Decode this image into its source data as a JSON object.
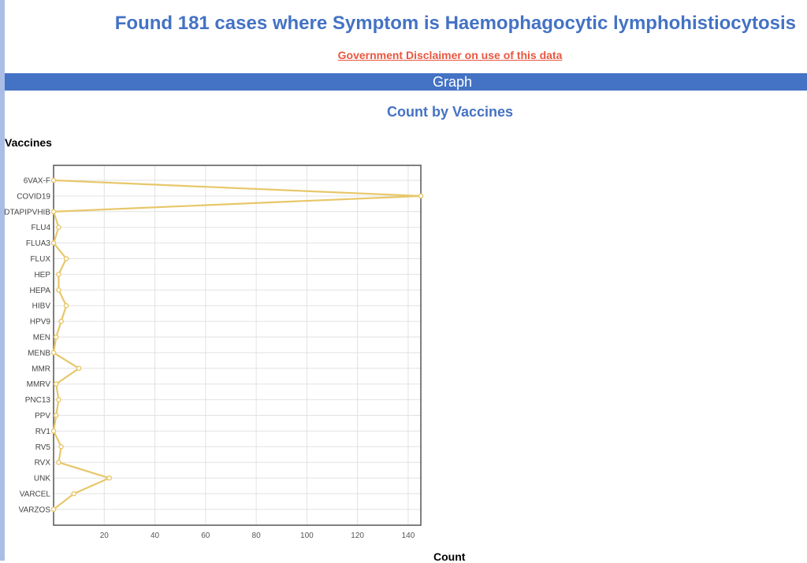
{
  "page": {
    "title": "Found 181 cases where Symptom is Haemophagocytic lymphohistiocytosis",
    "disclaimer_link": "Government Disclaimer on use of this data",
    "section_header": "Graph"
  },
  "chart_data": {
    "type": "line",
    "orientation": "horizontal",
    "title": "Count by Vaccines",
    "ylabel": "Vaccines",
    "xlabel": "Count",
    "xlim": [
      0,
      145
    ],
    "x_ticks": [
      20,
      40,
      60,
      80,
      100,
      120,
      140
    ],
    "grid": true,
    "series_color": "#e8c76a",
    "categories": [
      "6VAX-F",
      "COVID19",
      "DTAPIPVHIB",
      "FLU4",
      "FLUA3",
      "FLUX",
      "HEP",
      "HEPA",
      "HIBV",
      "HPV9",
      "MEN",
      "MENB",
      "MMR",
      "MMRV",
      "PNC13",
      "PPV",
      "RV1",
      "RV5",
      "RVX",
      "UNK",
      "VARCEL",
      "VARZOS"
    ],
    "values": [
      0,
      145,
      0,
      2,
      0,
      5,
      2,
      2,
      5,
      3,
      1,
      0,
      10,
      1,
      2,
      1,
      0,
      3,
      2,
      22,
      8,
      0
    ]
  }
}
